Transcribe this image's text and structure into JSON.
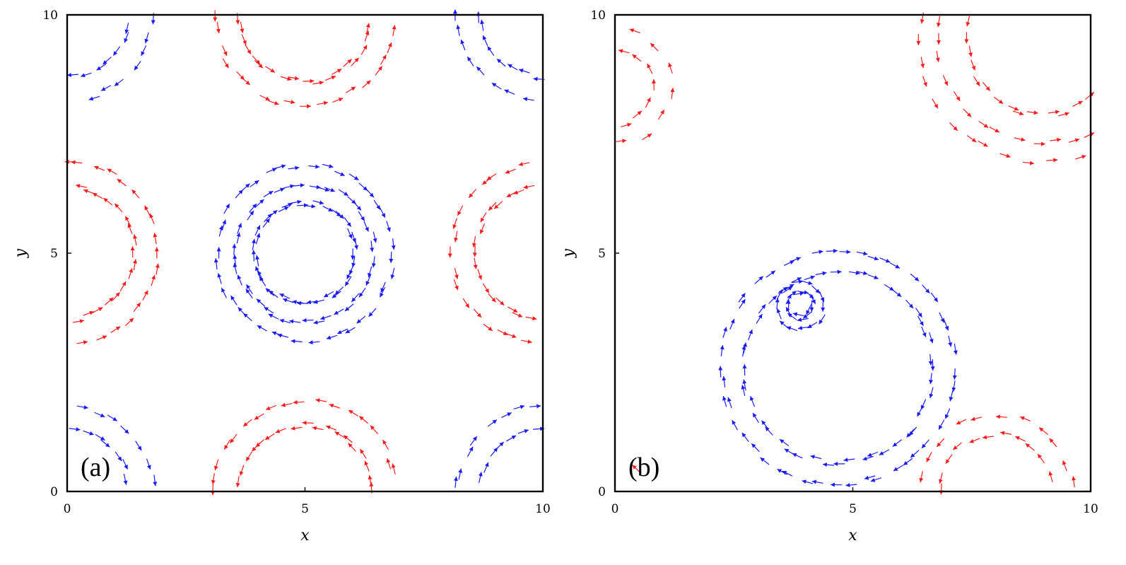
{
  "chart_data": [
    {
      "type": "quiver",
      "panel_label": "(a)",
      "xlabel": "x",
      "ylabel": "y",
      "xlim": [
        0,
        10
      ],
      "ylim": [
        0,
        10
      ],
      "xticks": [
        "0",
        "5",
        "10"
      ],
      "yticks": [
        "0",
        "5",
        "10"
      ],
      "grid": false,
      "legend": "none",
      "series": [
        {
          "color": "#ff1a1a",
          "rotation": "counterclockwise",
          "vortices": [
            {
              "cx": 0.0,
              "cy": 5.0,
              "radii": [
                1.4,
                1.9
              ],
              "count": 36
            },
            {
              "cx": 10.0,
              "cy": 5.0,
              "radii": [
                1.4,
                1.9
              ],
              "count": 36
            },
            {
              "cx": 5.0,
              "cy": 10.0,
              "radii": [
                1.4,
                1.9
              ],
              "count": 36
            },
            {
              "cx": 5.0,
              "cy": 0.0,
              "radii": [
                1.4,
                1.9
              ],
              "count": 36
            }
          ]
        },
        {
          "color": "#1a1aff",
          "rotation": "clockwise",
          "vortices": [
            {
              "cx": 5.0,
              "cy": 5.0,
              "radii": [
                1.05,
                1.45,
                1.85
              ],
              "count": 40
            },
            {
              "cx": 0.0,
              "cy": 0.0,
              "radii": [
                1.3,
                1.8
              ],
              "count": 30
            },
            {
              "cx": 10.0,
              "cy": 0.0,
              "radii": [
                1.3,
                1.8
              ],
              "count": 30
            },
            {
              "cx": 0.0,
              "cy": 10.0,
              "radii": [
                1.3,
                1.8
              ],
              "count": 30
            },
            {
              "cx": 10.0,
              "cy": 10.0,
              "radii": [
                1.3,
                1.8
              ],
              "count": 30
            }
          ]
        }
      ]
    },
    {
      "type": "quiver",
      "panel_label": "(b)",
      "xlabel": "x",
      "ylabel": "y",
      "xlim": [
        0,
        10
      ],
      "ylim": [
        0,
        10
      ],
      "xticks": [
        "0",
        "5",
        "10"
      ],
      "yticks": [
        "0",
        "5",
        "10"
      ],
      "grid": false,
      "legend": "none",
      "series": [
        {
          "color": "#ff1a1a",
          "rotation": "counterclockwise",
          "vortices": [
            {
              "cx": 9.0,
              "cy": 9.5,
              "radii": [
                1.6,
                2.2,
                2.6
              ],
              "count": 34
            },
            {
              "cx": 8.0,
              "cy": 0.0,
              "radii": [
                1.2,
                1.6
              ],
              "count": 22
            },
            {
              "cx": 0.0,
              "cy": 0.0,
              "radii": [
                0.6
              ],
              "count": 8
            },
            {
              "cx": 0.0,
              "cy": 8.5,
              "radii": [
                0.8,
                1.2
              ],
              "count": 14
            }
          ]
        },
        {
          "color": "#1a1aff",
          "rotation": "clockwise",
          "vortices": [
            {
              "cx": 4.7,
              "cy": 2.6,
              "radii": [
                2.0,
                2.45
              ],
              "count": 48
            },
            {
              "cx": 3.9,
              "cy": 3.9,
              "radii": [
                0.25,
                0.5
              ],
              "count": 14
            }
          ]
        }
      ]
    }
  ]
}
